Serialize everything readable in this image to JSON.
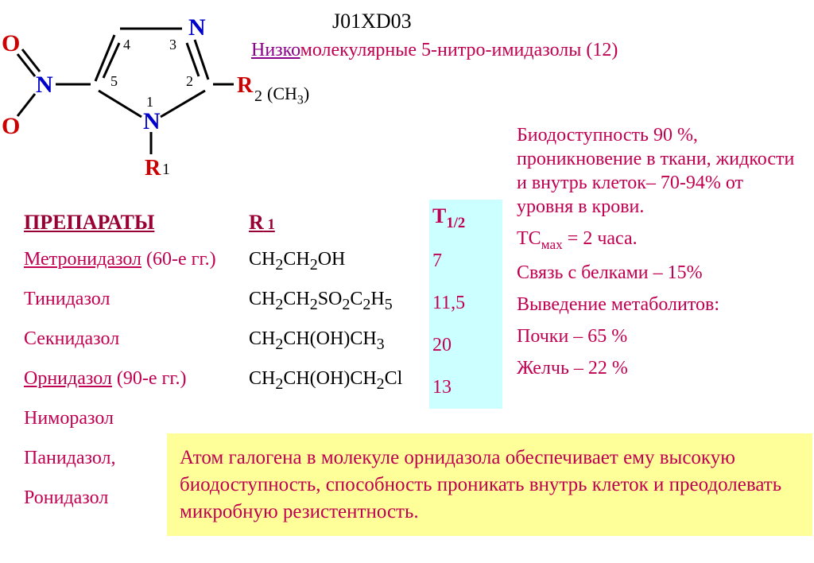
{
  "header": {
    "code": "J01XD03",
    "line2_prefix": "Низко",
    "line2_rest": "молекулярные 5-нитро-имидазолы (12)"
  },
  "molecule": {
    "atom_N3": "N",
    "atom_N1": "N",
    "atom_N_nitro": "N",
    "atom_O1": "O",
    "atom_O2": "O",
    "pos_2": "2",
    "pos_3": "3",
    "pos_4": "4",
    "pos_5": "5",
    "pos_1": "1",
    "R_label": "R",
    "R1_sub": "1",
    "R2_sub": "2",
    "r2_annot": "(CH",
    "r2_annot_sub": "3",
    "r2_annot_close": ")",
    "colors": {
      "ring": "#000000",
      "N_blue": "#0000cc",
      "O_red": "#cc0000",
      "R_red": "#cc0000",
      "line_w": 3
    }
  },
  "columns": {
    "drugs_header": "ПРЕПАРАТЫ",
    "r1_header": "R",
    "r1_sub": " 1",
    "t12_header": "Т",
    "t12_sub": "1/2"
  },
  "drugs": [
    {
      "name": "Метронидазол",
      "note": " (60-е гг.)",
      "underline": true
    },
    {
      "name": "Тинидазол",
      "note": "",
      "underline": false
    },
    {
      "name": "Секнидазол",
      "note": "",
      "underline": false
    },
    {
      "name": "Орнидазол",
      "note": "  (90-е гг.)",
      "underline": true
    },
    {
      "name": "Ниморазол",
      "note": "",
      "underline": false
    },
    {
      "name": "Панидазол,",
      "note": "",
      "underline": false
    },
    {
      "name": "Ронидазол",
      "note": "",
      "underline": false
    }
  ],
  "r1_formulas_html": [
    "CH<sub>2</sub>CH<sub>2</sub>OH",
    "CH<sub>2</sub>CH<sub>2</sub>SO<sub>2</sub>C<sub>2</sub>H<sub>5</sub>",
    "CH<sub>2</sub>CH(OH)CH<sub>3</sub>",
    "CH<sub>2</sub>CH(OH)CH<sub>2</sub>Cl"
  ],
  "t12": [
    "7",
    "11,5",
    "20",
    "13"
  ],
  "pk": {
    "line1": "Биодоступность 90 %, проникновение в ткани, жидкости и внутрь клеток– 70-94% от уровня в крови.",
    "line2_pre": "ТС",
    "line2_sub": "мах",
    "line2_post": " = 2 часа.",
    "line3": "Связь с белками – 15%",
    "line4": "Выведение метаболитов:",
    "line5": "Почки – 65 %",
    "line6": "Желчь – 22 %"
  },
  "yellowbox": "Атом галогена в молекуле орнидазола обеспечивает ему высокую биодоступность, способность проникать внутрь клеток и преодолевать микробную резистентность."
}
